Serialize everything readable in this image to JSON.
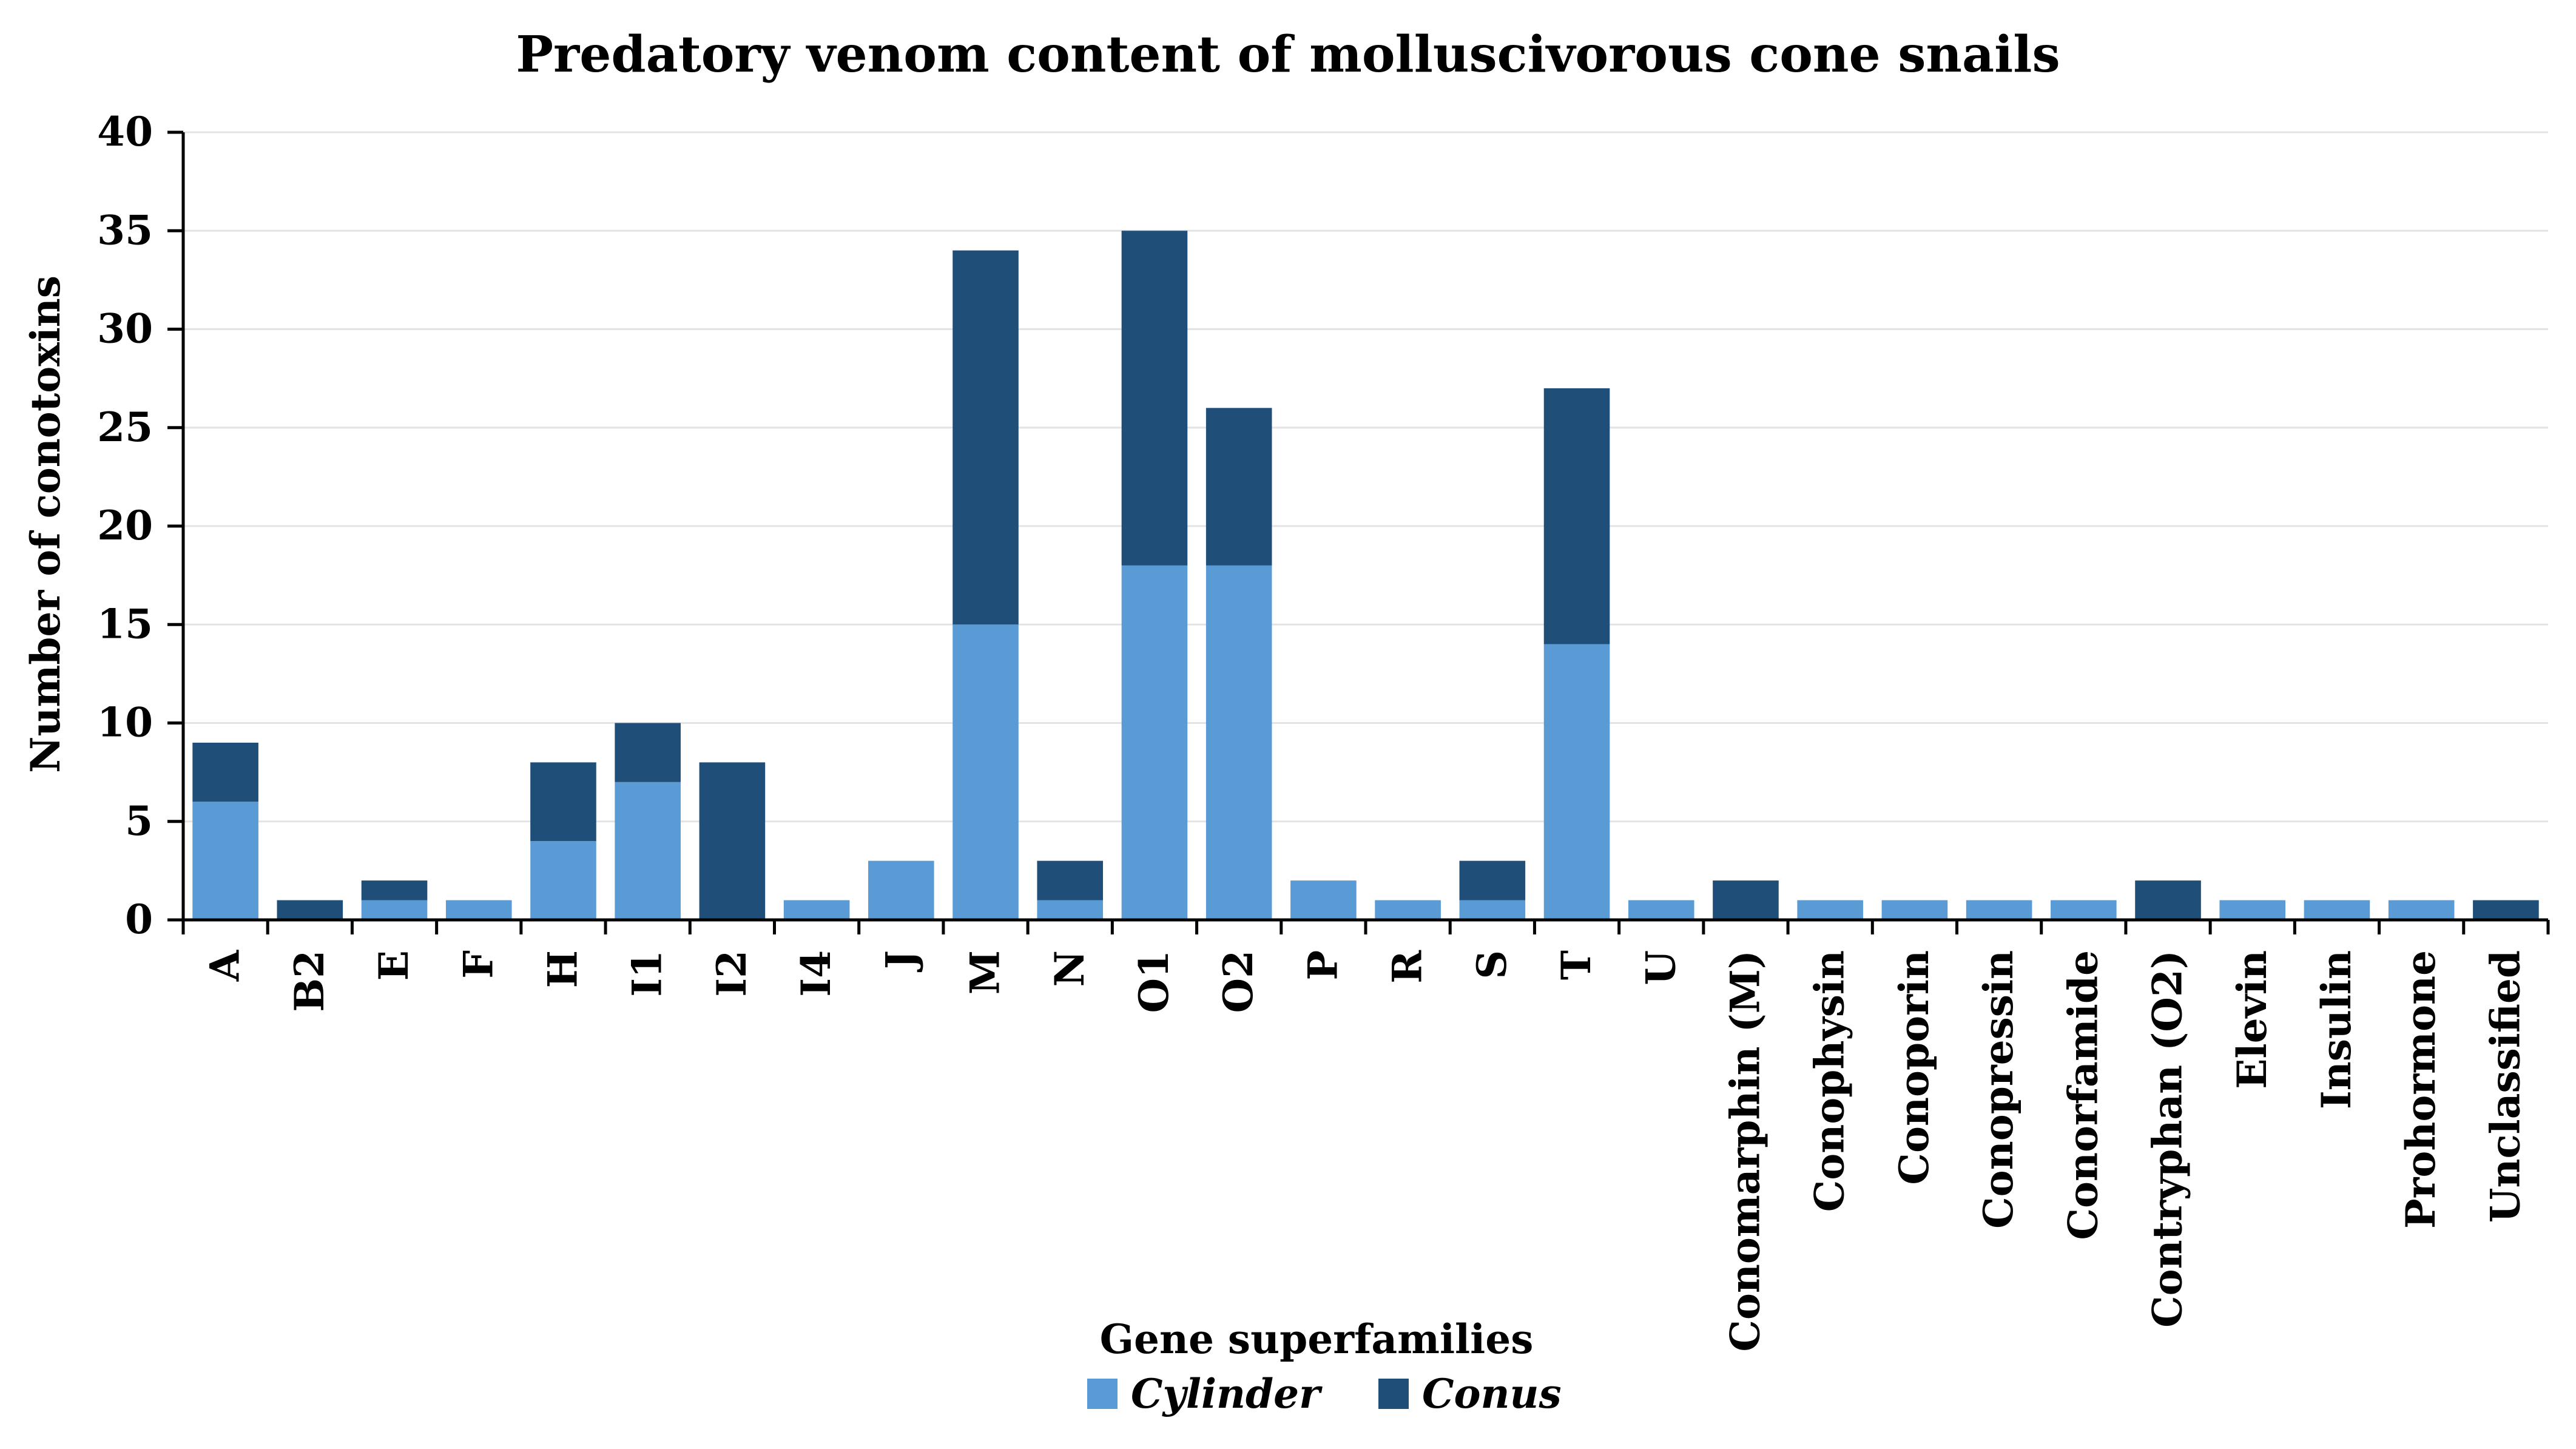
{
  "chart_data": {
    "type": "bar",
    "stacked": true,
    "title": "Predatory venom content of molluscivorous cone snails",
    "xlabel": "Gene superfamilies",
    "ylabel": "Number of conotoxins",
    "ylim": [
      0,
      40
    ],
    "yticks": [
      0,
      5,
      10,
      15,
      20,
      25,
      30,
      35,
      40
    ],
    "grid": true,
    "legend_position": "bottom-center",
    "categories": [
      "A",
      "B2",
      "E",
      "F",
      "H",
      "I1",
      "I2",
      "I4",
      "J",
      "M",
      "N",
      "O1",
      "O2",
      "P",
      "R",
      "S",
      "T",
      "U",
      "Conomarphin (M)",
      "Conophysin",
      "Conoporin",
      "Conopressin",
      "Conorfamide",
      "Contryphan (O2)",
      "Elevin",
      "Insulin",
      "Prohormone",
      "Unclassified"
    ],
    "series": [
      {
        "name": "Cylinder",
        "color": "#5b9bd5",
        "values": [
          6,
          0,
          1,
          1,
          4,
          7,
          0,
          1,
          3,
          15,
          1,
          18,
          18,
          2,
          1,
          1,
          14,
          1,
          0,
          1,
          1,
          1,
          1,
          0,
          1,
          1,
          1,
          0
        ]
      },
      {
        "name": "Conus",
        "color": "#1f4e79",
        "values": [
          3,
          1,
          1,
          0,
          4,
          3,
          8,
          0,
          0,
          19,
          2,
          17,
          8,
          0,
          0,
          2,
          13,
          0,
          2,
          0,
          0,
          0,
          0,
          2,
          0,
          0,
          0,
          1
        ]
      }
    ]
  }
}
